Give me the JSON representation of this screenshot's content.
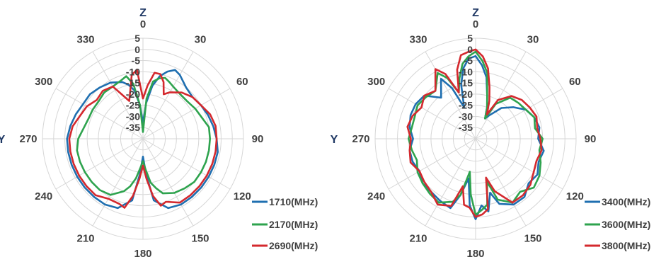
{
  "chart_data": [
    {
      "type": "polar",
      "top_label": "Z",
      "side_label": "Y",
      "angle_ticks": [
        "0",
        "30",
        "60",
        "90",
        "120",
        "150",
        "180",
        "210",
        "240",
        "270",
        "300",
        "330"
      ],
      "radial_ticks": [
        "5",
        "0",
        "-5",
        "-10",
        "-15",
        "-20",
        "-25",
        "-30",
        "-35"
      ],
      "rlim": [
        -40,
        5
      ],
      "grid": true,
      "legend_position": "bottom-right",
      "series": [
        {
          "name": "1710(MHz)",
          "color": "#1f6fb0",
          "theta": [
            0,
            5,
            10,
            15,
            20,
            25,
            30,
            40,
            50,
            60,
            70,
            80,
            90,
            100,
            110,
            120,
            130,
            140,
            150,
            160,
            170,
            175,
            180,
            185,
            190,
            200,
            210,
            220,
            230,
            240,
            250,
            260,
            270,
            280,
            290,
            300,
            310,
            320,
            330,
            340,
            345,
            350,
            355
          ],
          "r": [
            -33,
            -24,
            -16,
            -11,
            -8,
            -6,
            -7,
            -10,
            -11,
            -10,
            -9,
            -8,
            -7,
            -6,
            -6,
            -6,
            -6,
            -6,
            -6,
            -7,
            -12,
            -24,
            -32,
            -24,
            -12,
            -7,
            -6,
            -6,
            -6,
            -6,
            -6,
            -6,
            -6,
            -7,
            -8,
            -9,
            -9,
            -10,
            -11,
            -13,
            -15,
            -18,
            -25
          ]
        },
        {
          "name": "2170(MHz)",
          "color": "#2ea34e",
          "theta": [
            0,
            5,
            10,
            15,
            20,
            25,
            30,
            40,
            50,
            60,
            70,
            80,
            90,
            100,
            110,
            120,
            130,
            140,
            150,
            160,
            165,
            170,
            175,
            180,
            185,
            190,
            195,
            200,
            210,
            220,
            230,
            240,
            250,
            260,
            270,
            280,
            290,
            300,
            310,
            320,
            330,
            340,
            345,
            350,
            355
          ],
          "r": [
            -37,
            -22,
            -14,
            -12,
            -11,
            -12,
            -13,
            -14,
            -14,
            -13,
            -12,
            -10,
            -10,
            -10,
            -10,
            -10,
            -10,
            -11,
            -12,
            -14,
            -17,
            -20,
            -26,
            -30,
            -27,
            -22,
            -18,
            -15,
            -11,
            -10,
            -10,
            -10,
            -10,
            -10,
            -11,
            -13,
            -14,
            -14,
            -14,
            -13,
            -13,
            -12,
            -11,
            -15,
            -25
          ]
        },
        {
          "name": "2690(MHz)",
          "color": "#d4292e",
          "theta": [
            0,
            5,
            10,
            15,
            20,
            25,
            30,
            40,
            50,
            60,
            70,
            80,
            90,
            100,
            110,
            120,
            130,
            140,
            150,
            160,
            165,
            170,
            175,
            180,
            185,
            190,
            195,
            200,
            210,
            220,
            230,
            240,
            250,
            260,
            270,
            280,
            290,
            300,
            310,
            320,
            330,
            340,
            345,
            350,
            355
          ],
          "r": [
            -22,
            -16,
            -10,
            -10,
            -13,
            -18,
            -16,
            -13,
            -11,
            -10,
            -8,
            -7,
            -7,
            -7,
            -7,
            -7,
            -7,
            -7,
            -7,
            -10,
            -9,
            -14,
            -22,
            -28,
            -22,
            -14,
            -8,
            -9,
            -9,
            -7,
            -7,
            -7,
            -7,
            -7,
            -7,
            -8,
            -10,
            -11,
            -13,
            -12,
            -13,
            -22,
            -18,
            -11,
            -9
          ]
        }
      ]
    },
    {
      "type": "polar",
      "top_label": "Z",
      "side_label": "Y",
      "angle_ticks": [
        "0",
        "30",
        "60",
        "90",
        "120",
        "150",
        "180",
        "210",
        "240",
        "270",
        "300",
        "330"
      ],
      "radial_ticks": [
        "5",
        "0",
        "-5",
        "-10",
        "-15",
        "-20",
        "-25",
        "-30",
        "-35"
      ],
      "rlim": [
        -40,
        5
      ],
      "grid": true,
      "legend_position": "bottom-right",
      "series": [
        {
          "name": "3400(MHz)",
          "color": "#1f6fb0",
          "theta": [
            0,
            5,
            10,
            15,
            20,
            25,
            30,
            40,
            50,
            60,
            70,
            80,
            90,
            100,
            110,
            120,
            130,
            140,
            150,
            160,
            165,
            170,
            175,
            180,
            185,
            190,
            195,
            200,
            210,
            220,
            230,
            240,
            250,
            260,
            270,
            280,
            290,
            300,
            310,
            320,
            330,
            335,
            340,
            345,
            350,
            355
          ],
          "r": [
            -3,
            -7,
            -12,
            -20,
            -25,
            -30,
            -28,
            -22,
            -18,
            -14,
            -12,
            -11,
            -12,
            -9,
            -10,
            -8,
            -9,
            -6,
            -6,
            -9,
            -15,
            -7,
            -10,
            -4,
            -10,
            -22,
            -14,
            -7,
            -8,
            -9,
            -9,
            -11,
            -10,
            -10,
            -12,
            -10,
            -9,
            -9,
            -10,
            -16,
            -9,
            -15,
            -25,
            -15,
            -8,
            -4
          ]
        },
        {
          "name": "3600(MHz)",
          "color": "#2ea34e",
          "theta": [
            0,
            5,
            10,
            15,
            20,
            25,
            30,
            40,
            50,
            60,
            70,
            80,
            90,
            100,
            110,
            120,
            130,
            140,
            150,
            160,
            165,
            170,
            175,
            180,
            185,
            190,
            195,
            200,
            210,
            220,
            230,
            240,
            250,
            260,
            270,
            280,
            290,
            300,
            310,
            320,
            330,
            335,
            340,
            345,
            350,
            355
          ],
          "r": [
            -1,
            -5,
            -10,
            -20,
            -25,
            -30,
            -22,
            -16,
            -15,
            -14,
            -12,
            -13,
            -10,
            -11,
            -9,
            -7,
            -6,
            -9,
            -7,
            -11,
            -20,
            -10,
            -8,
            -6,
            -15,
            -25,
            -14,
            -10,
            -7,
            -8,
            -9,
            -10,
            -12,
            -11,
            -10,
            -11,
            -11,
            -10,
            -11,
            -12,
            -6,
            -10,
            -18,
            -12,
            -6,
            -3
          ]
        },
        {
          "name": "3800(MHz)",
          "color": "#d4292e",
          "theta": [
            0,
            5,
            10,
            15,
            20,
            25,
            30,
            40,
            50,
            60,
            70,
            80,
            90,
            100,
            110,
            120,
            130,
            140,
            150,
            160,
            165,
            170,
            175,
            180,
            185,
            190,
            195,
            200,
            210,
            220,
            230,
            240,
            250,
            260,
            270,
            280,
            290,
            300,
            310,
            320,
            330,
            335,
            340,
            345,
            350,
            355
          ],
          "r": [
            0,
            -3,
            -8,
            -16,
            -22,
            -28,
            -20,
            -15,
            -13,
            -12,
            -11,
            -12,
            -11,
            -10,
            -11,
            -10,
            -8,
            -7,
            -7,
            -15,
            -22,
            -8,
            -6,
            -5,
            -9,
            -10,
            -18,
            -8,
            -6,
            -9,
            -10,
            -11,
            -9,
            -10,
            -11,
            -9,
            -10,
            -12,
            -10,
            -12,
            -4,
            -8,
            -18,
            -8,
            -2,
            -1
          ]
        }
      ]
    }
  ]
}
